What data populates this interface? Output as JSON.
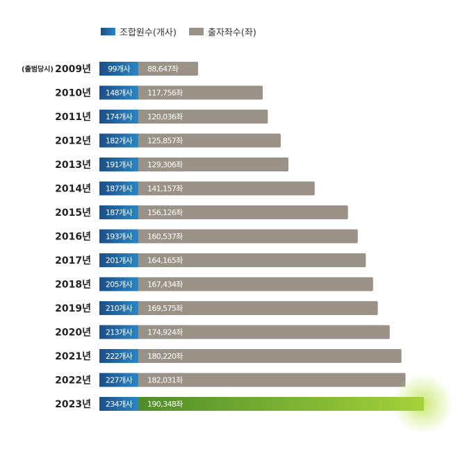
{
  "legend": {
    "count_label": "조합원수(개사)",
    "seat_label": "출자좌수(좌)"
  },
  "first_year_note": "(출범당시)",
  "colors": {
    "count_bar_start": "#1d4f87",
    "count_bar_end": "#2a86c4",
    "seat_bar": "#9a9287",
    "highlight_bar_start": "#4f8d2a",
    "highlight_bar_end": "#a4d23a",
    "highlight_glow": "#c8e86a"
  },
  "chart_data": {
    "type": "bar",
    "orientation": "horizontal",
    "categories": [
      "2009년",
      "2010년",
      "2011년",
      "2012년",
      "2013년",
      "2014년",
      "2015년",
      "2016년",
      "2017년",
      "2018년",
      "2019년",
      "2020년",
      "2021년",
      "2022년",
      "2023년"
    ],
    "series": [
      {
        "name": "조합원수(개사)",
        "values": [
          99,
          148,
          174,
          182,
          191,
          187,
          187,
          193,
          201,
          205,
          210,
          213,
          222,
          227,
          234
        ],
        "labels": [
          "99개사",
          "148개사",
          "174개사",
          "182개사",
          "191개사",
          "187개사",
          "187개사",
          "193개사",
          "201개사",
          "205개사",
          "210개사",
          "213개사",
          "222개사",
          "227개사",
          "234개사"
        ]
      },
      {
        "name": "출자좌수(좌)",
        "values": [
          88647,
          117756,
          120036,
          125857,
          129306,
          141157,
          156126,
          160537,
          164165,
          167434,
          169575,
          174924,
          180220,
          182031,
          190348
        ],
        "labels": [
          "88,647좌",
          "117,756좌",
          "120,036좌",
          "125,857좌",
          "129,306좌",
          "141,157좌",
          "156,126좌",
          "160,537좌",
          "164,165좌",
          "167,434좌",
          "169,575좌",
          "174,924좌",
          "180,220좌",
          "182,031좌",
          "190,348좌"
        ]
      }
    ],
    "highlight_category": "2023년",
    "legend_position": "top"
  }
}
